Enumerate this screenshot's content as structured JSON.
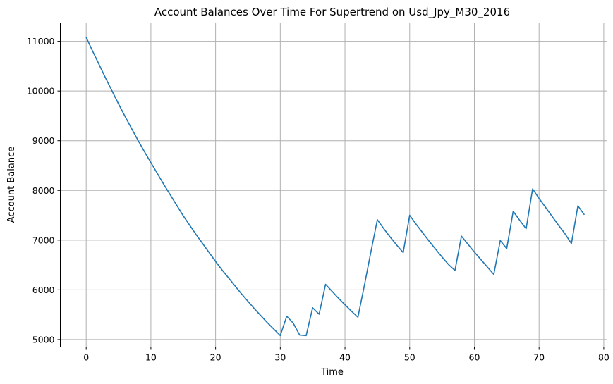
{
  "chart_data": {
    "type": "line",
    "title": "Account Balances Over Time For Supertrend on Usd_Jpy_M30_2016",
    "xlabel": "Time",
    "ylabel": "Account Balance",
    "xlim": [
      -4,
      80.5
    ],
    "ylim": [
      4850,
      11370
    ],
    "xticks": [
      0,
      10,
      20,
      30,
      40,
      50,
      60,
      70,
      80
    ],
    "yticks": [
      5000,
      6000,
      7000,
      8000,
      9000,
      10000,
      11000
    ],
    "xtick_labels": [
      "0",
      "10",
      "20",
      "30",
      "40",
      "50",
      "60",
      "70",
      "80"
    ],
    "ytick_labels": [
      "5000",
      "6000",
      "7000",
      "8000",
      "9000",
      "10000",
      "11000"
    ],
    "grid": true,
    "line_color": "#1f77b4",
    "series": [
      {
        "x": [
          0,
          1,
          2,
          3,
          4,
          5,
          6,
          7,
          8,
          9,
          10,
          11,
          12,
          13,
          14,
          15,
          16,
          17,
          18,
          19,
          20,
          21,
          22,
          23,
          24,
          25,
          26,
          27,
          28,
          29,
          30,
          31,
          32,
          33,
          34,
          35,
          36,
          37,
          38,
          39,
          40,
          41,
          42,
          43,
          44,
          45,
          46,
          47,
          48,
          49,
          50,
          51,
          52,
          53,
          54,
          55,
          56,
          57,
          58,
          59,
          60,
          61,
          62,
          63,
          64,
          65,
          66,
          67,
          68,
          69,
          70,
          71,
          72,
          73,
          74,
          75,
          76,
          77
        ],
        "values": [
          11080,
          10800,
          10530,
          10260,
          10000,
          9740,
          9490,
          9250,
          9010,
          8780,
          8560,
          8340,
          8120,
          7910,
          7700,
          7490,
          7300,
          7110,
          6930,
          6750,
          6570,
          6400,
          6240,
          6080,
          5920,
          5770,
          5620,
          5480,
          5340,
          5210,
          5080,
          5470,
          5330,
          5090,
          5080,
          5640,
          5510,
          6110,
          5970,
          5830,
          5700,
          5570,
          5450,
          6090,
          6760,
          7410,
          7230,
          7060,
          6900,
          6750,
          7500,
          7320,
          7150,
          6980,
          6820,
          6660,
          6510,
          6390,
          7080,
          6920,
          6760,
          6610,
          6460,
          6310,
          6990,
          6830,
          7580,
          7400,
          7230,
          8030,
          7840,
          7660,
          7480,
          7300,
          7130,
          6930,
          7690,
          7510
        ]
      }
    ]
  }
}
